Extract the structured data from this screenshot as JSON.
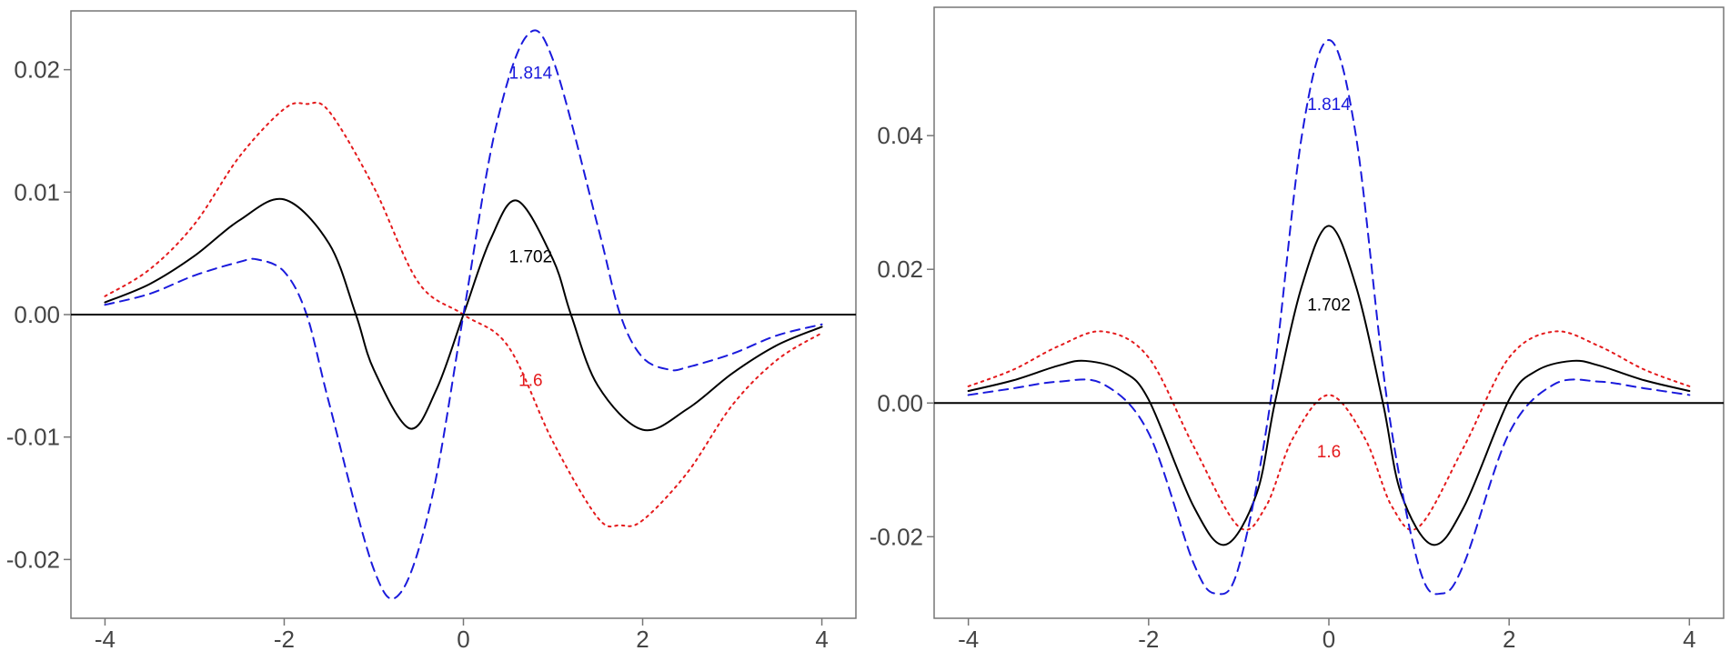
{
  "chart_data": [
    {
      "type": "line",
      "title": "",
      "xlabel": "",
      "ylabel": "",
      "xlim": [
        -4.38,
        4.38
      ],
      "ylim": [
        -0.0248,
        0.0248
      ],
      "x_ticks": [
        {
          "value": -4,
          "label": "-4"
        },
        {
          "value": -2,
          "label": "-2"
        },
        {
          "value": 0,
          "label": "0"
        },
        {
          "value": 2,
          "label": "2"
        },
        {
          "value": 4,
          "label": "4"
        }
      ],
      "y_ticks": [
        {
          "value": -0.02,
          "label": "-0.02"
        },
        {
          "value": -0.01,
          "label": "-0.01"
        },
        {
          "value": 0,
          "label": "0.00"
        },
        {
          "value": 0.01,
          "label": "0.01"
        },
        {
          "value": 0.02,
          "label": "0.02"
        }
      ],
      "hline": 0,
      "grid": false,
      "series": [
        {
          "name": "1.6",
          "color": "#e41a1c",
          "dash": "dotted",
          "x": [
            -4,
            -3.5,
            -3,
            -2.5,
            -2,
            -1.75,
            -1.5,
            -1,
            -0.5,
            0,
            0.5,
            1,
            1.5,
            1.75,
            2,
            2.5,
            3,
            3.5,
            4
          ],
          "y": [
            0.0015,
            0.0037,
            0.0074,
            0.0129,
            0.0168,
            0.0172,
            0.0166,
            0.0104,
            0.0026,
            0.0,
            -0.0026,
            -0.0104,
            -0.0166,
            -0.0172,
            -0.0168,
            -0.0129,
            -0.0074,
            -0.0037,
            -0.0015
          ]
        },
        {
          "name": "1.702",
          "color": "#000000",
          "dash": "solid",
          "x": [
            -4,
            -3.5,
            -3,
            -2.5,
            -2,
            -1.5,
            -1.2,
            -1,
            -0.6,
            -0.3,
            0,
            0.3,
            0.6,
            1,
            1.2,
            1.5,
            2,
            2.5,
            3,
            3.5,
            4
          ],
          "y": [
            0.001,
            0.0025,
            0.0048,
            0.0077,
            0.0094,
            0.0058,
            0.0,
            -0.0045,
            -0.0093,
            -0.0061,
            0.0,
            0.0061,
            0.0093,
            0.0045,
            0.0,
            -0.0058,
            -0.0094,
            -0.0077,
            -0.0048,
            -0.0025,
            -0.001
          ]
        },
        {
          "name": "1.814",
          "color": "#1a1adc",
          "dash": "dashed",
          "x": [
            -4,
            -3.5,
            -3,
            -2.5,
            -2.3,
            -2,
            -1.75,
            -1.5,
            -1,
            -0.7,
            -0.35,
            0,
            0.35,
            0.7,
            1,
            1.5,
            1.75,
            2,
            2.3,
            2.5,
            3,
            3.5,
            4
          ],
          "y": [
            0.0008,
            0.0017,
            0.0032,
            0.0043,
            0.0045,
            0.0035,
            0.0,
            -0.0072,
            -0.0208,
            -0.0227,
            -0.0149,
            0.0,
            0.0149,
            0.0227,
            0.0208,
            0.0072,
            0.0,
            -0.0035,
            -0.0045,
            -0.0043,
            -0.0032,
            -0.0017,
            -0.0008
          ]
        }
      ],
      "annotations": [
        {
          "text": "1.814",
          "x": 0.75,
          "y": 0.0198,
          "color": "#1a1adc"
        },
        {
          "text": "1.702",
          "x": 0.75,
          "y": 0.0048,
          "color": "#000000"
        },
        {
          "text": "1.6",
          "x": 0.75,
          "y": -0.0053,
          "color": "#e41a1c"
        }
      ]
    },
    {
      "type": "line",
      "title": "",
      "xlabel": "",
      "ylabel": "",
      "xlim": [
        -4.38,
        4.38
      ],
      "ylim": [
        -0.0322,
        0.0592
      ],
      "x_ticks": [
        {
          "value": -4,
          "label": "-4"
        },
        {
          "value": -2,
          "label": "-2"
        },
        {
          "value": 0,
          "label": "0"
        },
        {
          "value": 2,
          "label": "2"
        },
        {
          "value": 4,
          "label": "4"
        }
      ],
      "y_ticks": [
        {
          "value": -0.02,
          "label": "-0.02"
        },
        {
          "value": 0,
          "label": "0.00"
        },
        {
          "value": 0.02,
          "label": "0.02"
        },
        {
          "value": 0.04,
          "label": "0.04"
        }
      ],
      "hline": 0,
      "grid": false,
      "series": [
        {
          "name": "1.6",
          "color": "#e41a1c",
          "dash": "dotted",
          "x": [
            -4,
            -3.5,
            -3,
            -2.5,
            -2,
            -1.5,
            -1,
            -0.7,
            -0.4,
            0,
            0.4,
            0.7,
            1,
            1.5,
            2,
            2.5,
            3,
            3.5,
            4
          ],
          "y": [
            0.0025,
            0.005,
            0.0085,
            0.0107,
            0.0068,
            -0.0065,
            -0.0185,
            -0.0155,
            -0.0053,
            0.0012,
            -0.0053,
            -0.0155,
            -0.0185,
            -0.0065,
            0.0068,
            0.0107,
            0.0085,
            0.005,
            0.0025
          ]
        },
        {
          "name": "1.702",
          "color": "#000000",
          "dash": "solid",
          "x": [
            -4,
            -3.5,
            -3,
            -2.7,
            -2.3,
            -2,
            -1.5,
            -1.15,
            -0.8,
            -0.6,
            -0.3,
            0,
            0.3,
            0.6,
            0.8,
            1.15,
            1.5,
            2,
            2.3,
            2.7,
            3,
            3.5,
            4
          ],
          "y": [
            0.0018,
            0.0034,
            0.0056,
            0.0063,
            0.0048,
            0.0005,
            -0.0155,
            -0.0212,
            -0.0135,
            0.0,
            0.0175,
            0.0265,
            0.0175,
            0.0,
            -0.0135,
            -0.0212,
            -0.0155,
            0.0005,
            0.0048,
            0.0063,
            0.0056,
            0.0034,
            0.0018
          ]
        },
        {
          "name": "1.814",
          "color": "#1a1adc",
          "dash": "dashed",
          "x": [
            -4,
            -3.5,
            -3,
            -2.5,
            -2,
            -1.5,
            -1.25,
            -1,
            -0.65,
            -0.3,
            0,
            0.3,
            0.65,
            1,
            1.25,
            1.5,
            2,
            2.5,
            3,
            3.5,
            4
          ],
          "y": [
            0.0012,
            0.0022,
            0.0032,
            0.0028,
            -0.0045,
            -0.024,
            -0.0285,
            -0.0245,
            0.0,
            0.04,
            0.0543,
            0.04,
            0.0,
            -0.0245,
            -0.0285,
            -0.024,
            -0.0045,
            0.0028,
            0.0032,
            0.0022,
            0.0012
          ]
        }
      ],
      "annotations": [
        {
          "text": "1.814",
          "x": 0,
          "y": 0.0448,
          "color": "#1a1adc"
        },
        {
          "text": "1.702",
          "x": 0,
          "y": 0.0148,
          "color": "#000000"
        },
        {
          "text": "1.6",
          "x": 0,
          "y": -0.0072,
          "color": "#e41a1c"
        }
      ]
    }
  ]
}
